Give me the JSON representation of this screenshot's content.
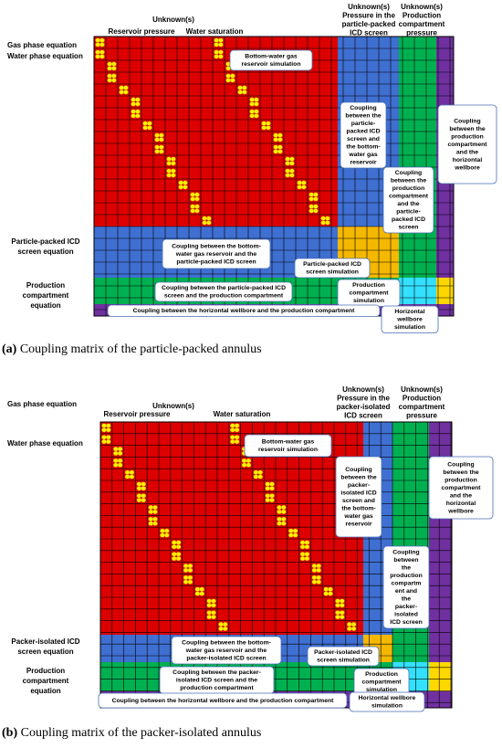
{
  "panels": [
    {
      "unknowns": "Unknown(s)",
      "reservoir_pressure": "Reservoir pressure",
      "water_saturation": "Water saturation",
      "screen_unknown": [
        "Unknown(s)",
        "Pressure in the",
        "particle-packed",
        "ICD screen"
      ],
      "compartment_unknown": [
        "Unknown(s)",
        "Production",
        "compartment",
        "pressure"
      ],
      "rows": [
        [
          "Gas phase equation"
        ],
        [
          "Water phase equation"
        ],
        [
          "Particle-packed ICD",
          "screen equation"
        ],
        [
          "Production",
          "compartment",
          "equation"
        ]
      ],
      "boxes": [
        [
          "Bottom-water gas",
          "reservoir simulation"
        ],
        [
          "Coupling",
          "between the",
          "production",
          "compartment",
          "and the",
          "horizontal",
          "wellbore"
        ],
        [
          "Coupling",
          "between the",
          "particle-",
          "packed ICD",
          "screen and",
          "the bottom-",
          "water gas",
          "reservoir"
        ],
        [
          "Coupling",
          "between the",
          "production",
          "compartment",
          "and the",
          "particle-",
          "packed ICD",
          "screen"
        ],
        [
          "Coupling between the bottom-",
          "water gas reservoir and the",
          "particle-packed ICD screen"
        ],
        [
          "Particle-packed ICD",
          "screen simulation"
        ],
        [
          "Coupling between the particle-packed ICD",
          "screen and the production compartment"
        ],
        [
          "Production",
          "compartment",
          "simulation"
        ],
        [
          "Coupling between the horizontal wellbore and the production compartment"
        ],
        [
          "Horizontal",
          "wellbore",
          "simulation"
        ]
      ],
      "caption": {
        "tag": "(a)",
        "text": " Coupling matrix of the particle-packed annulus"
      }
    },
    {
      "unknowns": "Unknown(s)",
      "reservoir_pressure": "Reservoir pressure",
      "water_saturation": "Water saturation",
      "screen_unknown": [
        "Unknown(s)",
        "Pressure in the",
        "packer-isolated",
        "ICD screen"
      ],
      "compartment_unknown": [
        "Unknown(s)",
        "Production",
        "compartment",
        "pressure"
      ],
      "rows": [
        [
          "Gas phase equation"
        ],
        [
          "Water phase equation"
        ],
        [
          "Packer-isolated ICD",
          "screen equation"
        ],
        [
          "Production",
          "compartment",
          "equation"
        ]
      ],
      "boxes": [
        [
          "Bottom-water gas",
          "reservoir simulation"
        ],
        [
          "Coupling",
          "between the",
          "production",
          "compartment",
          "and the",
          "horizontal",
          "wellbore"
        ],
        [
          "Coupling",
          "between the",
          "packer-",
          "isolated ICD",
          "screen and",
          "the bottom-",
          "water gas",
          "reservoir"
        ],
        [
          "Coupling",
          "between",
          "the",
          "production",
          "compartm",
          "ent and",
          "the",
          "packer-",
          "isolated",
          "ICD screen"
        ],
        [
          "Coupling between the bottom-",
          "water gas reservoir and the",
          "packer-isolated  ICD screen"
        ],
        [
          "Packer-isolated ICD",
          "screen simulation"
        ],
        [
          "Coupling between the packer-",
          "isolated ICD screen and the",
          "production compartment"
        ],
        [
          "Production",
          "compartment",
          "simulation"
        ],
        [
          "Coupling between the horizontal wellbore and the production compartment"
        ],
        [
          "Horizontal wellbore",
          "simulation"
        ]
      ],
      "caption": {
        "tag": "(b)",
        "text": " Coupling matrix of the packer-isolated annulus"
      }
    }
  ]
}
